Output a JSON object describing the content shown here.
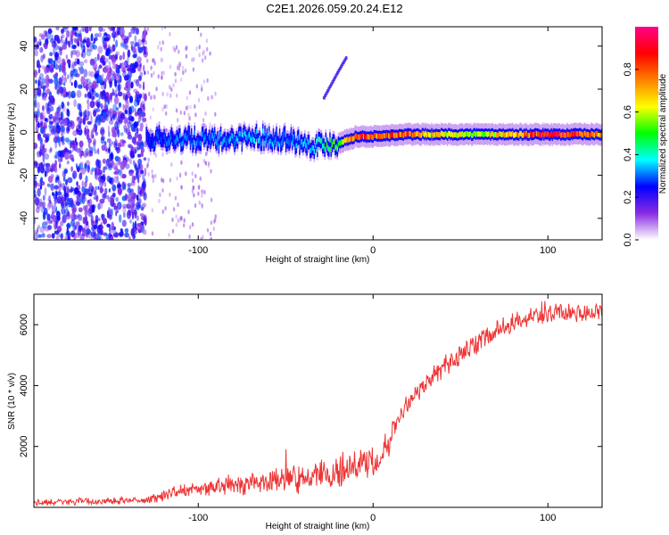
{
  "title": "C2E1.2026.059.20.24.E12",
  "chart_data": [
    {
      "type": "heatmap",
      "title": "",
      "xlabel": "Height of straight line (km)",
      "ylabel": "Frequency (Hz)",
      "xlim": [
        -194,
        131
      ],
      "ylim": [
        -50,
        49
      ],
      "xticks": [
        -100,
        0,
        100
      ],
      "xtick_labels": [
        "-100",
        "0",
        "100"
      ],
      "yticks": [
        -40,
        -20,
        0,
        20,
        40
      ],
      "ytick_labels": [
        "-40",
        "-20",
        "0",
        "20",
        "40"
      ],
      "colorbar": {
        "label": "Normalized spectral amplitude",
        "range": [
          0,
          1
        ],
        "ticks": [
          0,
          0.2,
          0.4,
          0.6,
          0.8
        ],
        "tick_labels": [
          "0.0",
          "0.2",
          "0.4",
          "0.6",
          "0.8"
        ],
        "colors": [
          "#ffffff",
          "#8a2be2",
          "#0000ff",
          "#00ffff",
          "#00ff00",
          "#ffff00",
          "#ff8000",
          "#ff0000",
          "#ff0088"
        ]
      },
      "signal_track": {
        "x": [
          -130,
          -110,
          -90,
          -70,
          -50,
          -35,
          -20,
          -10,
          0,
          20,
          60,
          100,
          131
        ],
        "freq": [
          -3,
          -3,
          -4,
          -2,
          -3,
          -6,
          -5,
          -2,
          -2,
          -1,
          -1,
          -1,
          -1
        ],
        "amplitude": [
          0.25,
          0.3,
          0.3,
          0.35,
          0.3,
          0.35,
          0.55,
          0.85,
          0.8,
          0.75,
          0.55,
          0.9,
          0.7
        ]
      },
      "noise_region_x": [
        -194,
        -130
      ],
      "secondary_trace": {
        "x": [
          -28,
          -20,
          -15
        ],
        "freq": [
          16,
          28,
          35
        ]
      }
    },
    {
      "type": "line",
      "title": "",
      "xlabel": "Height of straight line (km)",
      "ylabel": "SNR (10 * v/v)",
      "xlim": [
        -194,
        131
      ],
      "ylim": [
        0,
        7000
      ],
      "xticks": [
        -100,
        0,
        100
      ],
      "xtick_labels": [
        "-100",
        "0",
        "100"
      ],
      "yticks": [
        2000,
        4000,
        6000
      ],
      "ytick_labels": [
        "2000",
        "4000",
        "6000"
      ],
      "color": "#ee3333",
      "series": [
        {
          "name": "SNR",
          "x": [
            -194,
            -170,
            -150,
            -130,
            -120,
            -110,
            -100,
            -90,
            -80,
            -70,
            -60,
            -50,
            -40,
            -30,
            -20,
            -10,
            0,
            5,
            10,
            15,
            20,
            25,
            30,
            40,
            50,
            60,
            70,
            80,
            90,
            100,
            110,
            120,
            131
          ],
          "y": [
            150,
            180,
            200,
            250,
            380,
            500,
            600,
            680,
            760,
            800,
            850,
            900,
            950,
            1000,
            1150,
            1350,
            1550,
            1800,
            2400,
            3000,
            3500,
            3800,
            4100,
            4600,
            5000,
            5400,
            5800,
            6100,
            6300,
            6400,
            6380,
            6400,
            6420
          ]
        }
      ]
    }
  ]
}
